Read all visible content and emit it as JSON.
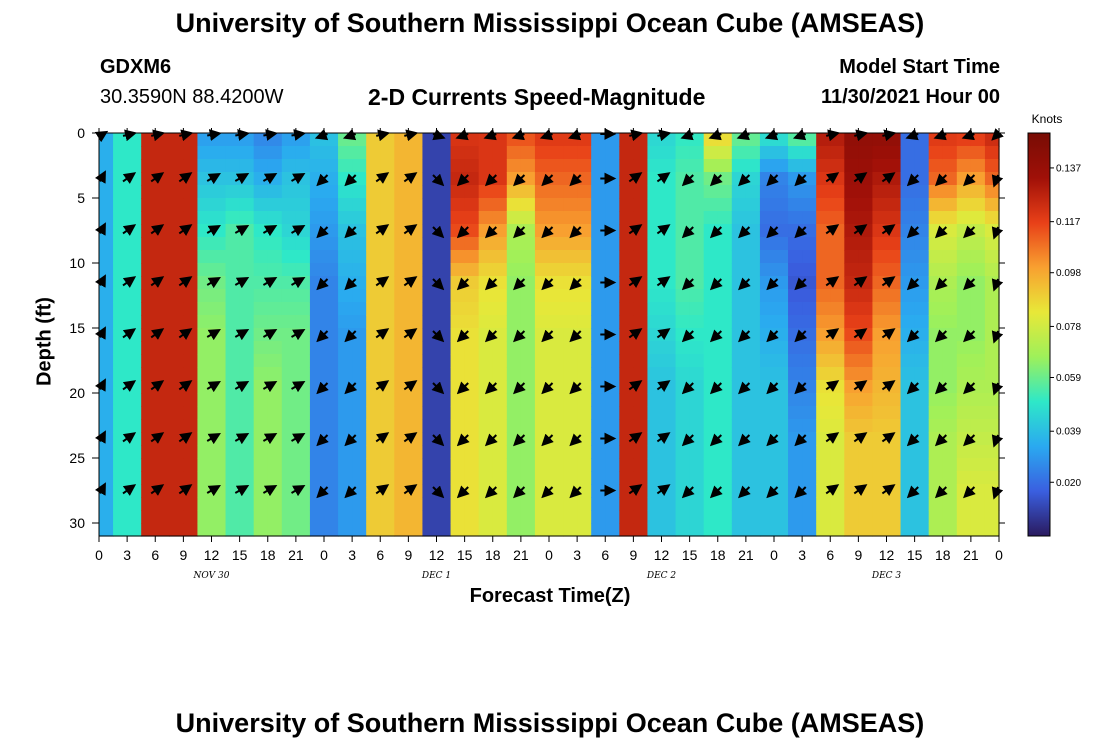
{
  "header": {
    "title": "University of Southern Mississippi Ocean Cube (AMSEAS)",
    "station": "GDXM6",
    "coords": "30.3590N  88.4200W",
    "subtitle": "2-D Currents Speed-Magnitude",
    "start_label": "Model Start Time",
    "start_value": "11/30/2021 Hour 00"
  },
  "footer": {
    "title": "University of Southern Mississippi Ocean Cube (AMSEAS)"
  },
  "chart_data": {
    "type": "heatmap",
    "title": "2-D Currents Speed-Magnitude",
    "xlabel": "Forecast Time(Z)",
    "ylabel": "Depth (ft)",
    "x_hours": [
      0,
      3,
      6,
      9,
      12,
      15,
      18,
      21,
      24,
      27,
      30,
      33,
      36,
      39,
      42,
      45,
      48,
      51,
      54,
      57,
      60,
      63,
      66,
      69,
      72,
      75,
      78,
      81,
      84,
      87,
      90,
      93,
      96
    ],
    "x_tick_labels": [
      "0",
      "3",
      "6",
      "9",
      "12",
      "15",
      "18",
      "21",
      "0",
      "3",
      "6",
      "9",
      "12",
      "15",
      "18",
      "21",
      "0",
      "3",
      "6",
      "9",
      "12",
      "15",
      "18",
      "21",
      "0",
      "3",
      "6",
      "9",
      "12",
      "15",
      "18",
      "21",
      "0"
    ],
    "day_labels": [
      {
        "label": "NOV 30",
        "hour": 12
      },
      {
        "label": "DEC 1",
        "hour": 36
      },
      {
        "label": "DEC 2",
        "hour": 60
      },
      {
        "label": "DEC 3",
        "hour": 84
      }
    ],
    "y_ticks": [
      0,
      5,
      10,
      15,
      20,
      25,
      30
    ],
    "y_tick_labels": [
      "0",
      "5",
      "10",
      "15",
      "20",
      "25",
      "30"
    ],
    "ylim": [
      0,
      31
    ],
    "xlim": [
      0,
      96
    ],
    "colorbar": {
      "units": "Knots",
      "range": [
        0.0,
        0.15
      ],
      "tick_values": [
        0.02,
        0.039,
        0.059,
        0.078,
        0.098,
        0.117,
        0.137
      ],
      "tick_labels": [
        "0.020",
        "0.039",
        "0.059",
        "0.078",
        "0.098",
        "0.117",
        "0.137"
      ]
    },
    "speed_profiles": [
      {
        "hour": 0,
        "speeds": [
          0.035,
          0.035,
          0.035,
          0.035,
          0.035,
          0.035,
          0.035,
          0.035
        ],
        "dirs": [
          55,
          55,
          55,
          55,
          55,
          55,
          55,
          55
        ]
      },
      {
        "hour": 3,
        "speeds": [
          0.05,
          0.05,
          0.05,
          0.05,
          0.05,
          0.05,
          0.05,
          0.05
        ],
        "dirs": [
          55,
          55,
          55,
          55,
          55,
          55,
          55,
          55
        ]
      },
      {
        "hour": 6,
        "speeds": [
          0.125,
          0.125,
          0.125,
          0.125,
          0.125,
          0.125,
          0.125,
          0.125
        ],
        "dirs": [
          55,
          55,
          55,
          55,
          55,
          55,
          55,
          55
        ]
      },
      {
        "hour": 9,
        "speeds": [
          0.125,
          0.125,
          0.125,
          0.125,
          0.125,
          0.125,
          0.125,
          0.125
        ],
        "dirs": [
          55,
          55,
          55,
          55,
          55,
          55,
          55,
          55
        ]
      },
      {
        "hour": 12,
        "speeds": [
          0.03,
          0.04,
          0.05,
          0.06,
          0.065,
          0.065,
          0.065,
          0.065
        ],
        "dirs": [
          60,
          60,
          60,
          60,
          60,
          60,
          60,
          60
        ]
      },
      {
        "hour": 15,
        "speeds": [
          0.03,
          0.04,
          0.055,
          0.055,
          0.055,
          0.055,
          0.055,
          0.055
        ],
        "dirs": [
          60,
          60,
          60,
          60,
          60,
          60,
          60,
          60
        ]
      },
      {
        "hour": 18,
        "speeds": [
          0.025,
          0.035,
          0.05,
          0.055,
          0.06,
          0.065,
          0.065,
          0.065
        ],
        "dirs": [
          60,
          60,
          60,
          60,
          60,
          60,
          60,
          60
        ]
      },
      {
        "hour": 21,
        "speeds": [
          0.03,
          0.04,
          0.045,
          0.055,
          0.06,
          0.06,
          0.06,
          0.06
        ],
        "dirs": [
          60,
          60,
          60,
          60,
          60,
          60,
          60,
          60
        ]
      },
      {
        "hour": 24,
        "speeds": [
          0.04,
          0.035,
          0.03,
          0.025,
          0.025,
          0.025,
          0.025,
          0.025
        ],
        "dirs": [
          225,
          225,
          225,
          225,
          225,
          225,
          225,
          225
        ]
      },
      {
        "hour": 27,
        "speeds": [
          0.06,
          0.05,
          0.04,
          0.035,
          0.03,
          0.03,
          0.03,
          0.03
        ],
        "dirs": [
          225,
          225,
          225,
          225,
          225,
          225,
          225,
          225
        ]
      },
      {
        "hour": 30,
        "speeds": [
          0.09,
          0.09,
          0.09,
          0.09,
          0.09,
          0.09,
          0.09,
          0.09
        ],
        "dirs": [
          55,
          55,
          55,
          55,
          55,
          55,
          55,
          55
        ]
      },
      {
        "hour": 33,
        "speeds": [
          0.095,
          0.095,
          0.095,
          0.095,
          0.095,
          0.095,
          0.095,
          0.095
        ],
        "dirs": [
          55,
          55,
          55,
          55,
          55,
          55,
          55,
          55
        ]
      },
      {
        "hour": 36,
        "speeds": [
          0.01,
          0.01,
          0.01,
          0.01,
          0.01,
          0.01,
          0.01,
          0.01
        ],
        "dirs": [
          135,
          135,
          135,
          135,
          135,
          135,
          135,
          135
        ]
      },
      {
        "hour": 39,
        "speeds": [
          0.12,
          0.125,
          0.115,
          0.09,
          0.085,
          0.085,
          0.085,
          0.085
        ],
        "dirs": [
          225,
          225,
          225,
          225,
          225,
          225,
          225,
          225
        ]
      },
      {
        "hour": 42,
        "speeds": [
          0.12,
          0.12,
          0.1,
          0.085,
          0.08,
          0.08,
          0.08,
          0.08
        ],
        "dirs": [
          225,
          225,
          225,
          225,
          225,
          225,
          225,
          225
        ]
      },
      {
        "hour": 45,
        "speeds": [
          0.115,
          0.1,
          0.07,
          0.065,
          0.065,
          0.065,
          0.065,
          0.065
        ],
        "dirs": [
          225,
          225,
          225,
          225,
          225,
          225,
          225,
          225
        ]
      },
      {
        "hour": 48,
        "speeds": [
          0.12,
          0.11,
          0.1,
          0.085,
          0.08,
          0.08,
          0.08,
          0.08
        ],
        "dirs": [
          225,
          225,
          225,
          225,
          225,
          225,
          225,
          225
        ]
      },
      {
        "hour": 51,
        "speeds": [
          0.12,
          0.11,
          0.1,
          0.085,
          0.08,
          0.08,
          0.08,
          0.08
        ],
        "dirs": [
          225,
          225,
          225,
          225,
          225,
          225,
          225,
          225
        ]
      },
      {
        "hour": 54,
        "speeds": [
          0.03,
          0.03,
          0.03,
          0.03,
          0.03,
          0.03,
          0.03,
          0.03
        ],
        "dirs": [
          90,
          90,
          90,
          90,
          90,
          90,
          90,
          90
        ]
      },
      {
        "hour": 57,
        "speeds": [
          0.125,
          0.125,
          0.125,
          0.125,
          0.125,
          0.125,
          0.125,
          0.125
        ],
        "dirs": [
          55,
          55,
          55,
          55,
          55,
          55,
          55,
          55
        ]
      },
      {
        "hour": 60,
        "speeds": [
          0.045,
          0.05,
          0.05,
          0.05,
          0.045,
          0.04,
          0.04,
          0.04
        ],
        "dirs": [
          55,
          55,
          55,
          55,
          55,
          55,
          55,
          55
        ]
      },
      {
        "hour": 63,
        "speeds": [
          0.05,
          0.055,
          0.055,
          0.055,
          0.05,
          0.045,
          0.045,
          0.045
        ],
        "dirs": [
          225,
          225,
          225,
          225,
          225,
          225,
          225,
          225
        ]
      },
      {
        "hour": 66,
        "speeds": [
          0.09,
          0.06,
          0.05,
          0.05,
          0.05,
          0.05,
          0.05,
          0.05
        ],
        "dirs": [
          225,
          225,
          225,
          225,
          225,
          225,
          225,
          225
        ]
      },
      {
        "hour": 69,
        "speeds": [
          0.06,
          0.045,
          0.04,
          0.04,
          0.04,
          0.04,
          0.04,
          0.04
        ],
        "dirs": [
          225,
          225,
          225,
          225,
          225,
          225,
          225,
          225
        ]
      },
      {
        "hour": 72,
        "speeds": [
          0.05,
          0.025,
          0.02,
          0.03,
          0.035,
          0.04,
          0.04,
          0.04
        ],
        "dirs": [
          225,
          225,
          225,
          225,
          225,
          225,
          225,
          225
        ]
      },
      {
        "hour": 75,
        "speeds": [
          0.06,
          0.03,
          0.02,
          0.015,
          0.02,
          0.025,
          0.03,
          0.03
        ],
        "dirs": [
          225,
          225,
          225,
          225,
          225,
          225,
          225,
          225
        ]
      },
      {
        "hour": 78,
        "speeds": [
          0.13,
          0.12,
          0.11,
          0.11,
          0.1,
          0.085,
          0.08,
          0.08
        ],
        "dirs": [
          55,
          55,
          55,
          55,
          55,
          55,
          55,
          55
        ]
      },
      {
        "hour": 81,
        "speeds": [
          0.14,
          0.135,
          0.13,
          0.125,
          0.115,
          0.1,
          0.09,
          0.09
        ],
        "dirs": [
          55,
          55,
          55,
          55,
          55,
          55,
          55,
          55
        ]
      },
      {
        "hour": 84,
        "speeds": [
          0.14,
          0.13,
          0.12,
          0.11,
          0.1,
          0.095,
          0.09,
          0.09
        ],
        "dirs": [
          55,
          55,
          55,
          55,
          55,
          55,
          55,
          55
        ]
      },
      {
        "hour": 87,
        "speeds": [
          0.02,
          0.02,
          0.025,
          0.03,
          0.035,
          0.04,
          0.04,
          0.04
        ],
        "dirs": [
          225,
          225,
          225,
          225,
          225,
          225,
          225,
          225
        ]
      },
      {
        "hour": 90,
        "speeds": [
          0.12,
          0.11,
          0.08,
          0.07,
          0.065,
          0.065,
          0.07,
          0.07
        ],
        "dirs": [
          225,
          225,
          225,
          225,
          225,
          225,
          225,
          225
        ]
      },
      {
        "hour": 93,
        "speeds": [
          0.12,
          0.1,
          0.075,
          0.065,
          0.065,
          0.07,
          0.075,
          0.08
        ],
        "dirs": [
          225,
          225,
          225,
          225,
          225,
          225,
          225,
          225
        ]
      },
      {
        "hour": 96,
        "speeds": [
          0.125,
          0.11,
          0.08,
          0.07,
          0.07,
          0.07,
          0.075,
          0.08
        ],
        "dirs": [
          225,
          225,
          225,
          225,
          225,
          225,
          225,
          225
        ]
      }
    ],
    "arrow_depths_ft": [
      0,
      3.5,
      7.5,
      11.5,
      15.5,
      19.5,
      23.5,
      27.5
    ],
    "colormap": [
      "#2a1a5e",
      "#3a5fe0",
      "#2aa9f0",
      "#2ee8c8",
      "#9ef05a",
      "#e8e838",
      "#f8a030",
      "#e84018",
      "#a01008",
      "#780c04"
    ]
  }
}
